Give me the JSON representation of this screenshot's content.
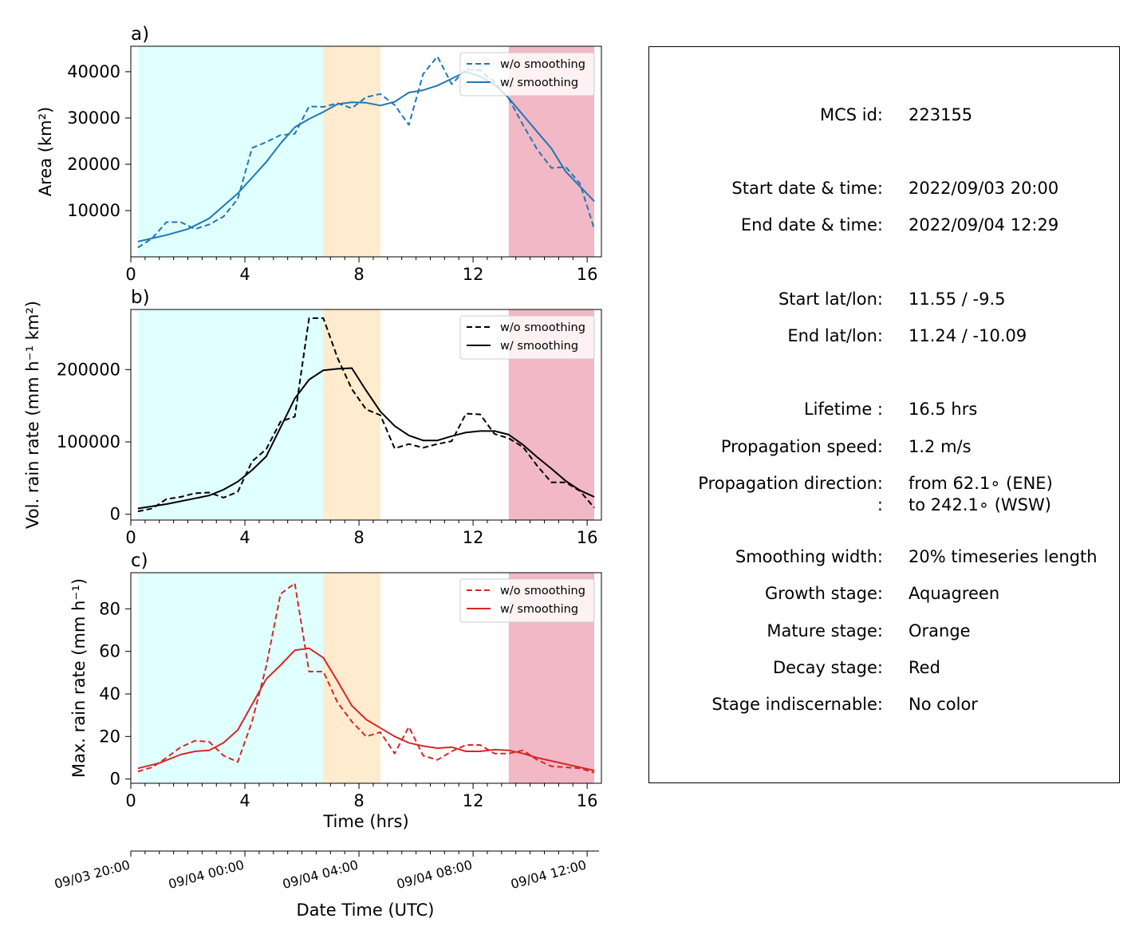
{
  "chart_data": [
    {
      "type": "line",
      "panel_label": "a)",
      "ylabel": "Area  (km²)",
      "xlim": [
        0,
        16.5
      ],
      "ylim": [
        0,
        45500
      ],
      "yticks": [
        10000,
        20000,
        30000,
        40000
      ],
      "xticks": [
        0,
        4,
        8,
        12,
        16
      ],
      "stages": [
        {
          "name": "growth",
          "x0": 0.25,
          "x1": 6.75,
          "color": "#e0ffff"
        },
        {
          "name": "mature",
          "x0": 6.75,
          "x1": 8.75,
          "color": "#ffebcd"
        },
        {
          "name": "decay",
          "x0": 13.25,
          "x1": 16.25,
          "color": "#f2b8c6"
        }
      ],
      "legend": {
        "location": "top-right"
      },
      "series": [
        {
          "name": "w/o smoothing",
          "style": "dashed",
          "color": "#1f77b4",
          "x": [
            0.25,
            0.75,
            1.25,
            1.75,
            2.25,
            2.75,
            3.25,
            3.75,
            4.25,
            4.75,
            5.25,
            5.75,
            6.25,
            6.75,
            7.25,
            7.75,
            8.25,
            8.75,
            9.25,
            9.75,
            10.25,
            10.75,
            11.25,
            11.75,
            12.25,
            12.75,
            13.25,
            13.75,
            14.25,
            14.75,
            15.25,
            15.75,
            16.25
          ],
          "y": [
            2000,
            4000,
            7500,
            7500,
            6000,
            7000,
            8700,
            12500,
            23500,
            24800,
            26300,
            26600,
            32500,
            32400,
            33200,
            32100,
            34500,
            35200,
            32800,
            28500,
            39500,
            43300,
            37300,
            40500,
            40300,
            37800,
            34200,
            28500,
            23200,
            19200,
            19400,
            15800,
            6000
          ]
        },
        {
          "name": "w/ smoothing",
          "style": "solid",
          "color": "#1f77b4",
          "x": [
            0.25,
            1.25,
            2.0,
            2.75,
            3.75,
            4.75,
            5.25,
            5.75,
            6.25,
            6.75,
            7.25,
            7.75,
            8.25,
            8.75,
            9.25,
            9.75,
            10.25,
            10.75,
            11.25,
            11.75,
            12.25,
            12.75,
            13.25,
            14.25,
            14.75,
            15.25,
            16.25
          ],
          "y": [
            3300,
            4700,
            6000,
            8300,
            13700,
            20500,
            24500,
            28000,
            29800,
            31300,
            33000,
            33400,
            33300,
            32700,
            33500,
            35500,
            36000,
            37000,
            38500,
            40000,
            39000,
            37200,
            34300,
            27000,
            23400,
            18400,
            12000
          ]
        }
      ]
    },
    {
      "type": "line",
      "panel_label": "b)",
      "ylabel": "Vol. rain rate (mm h⁻¹ km²)",
      "xlim": [
        0,
        16.5
      ],
      "ylim": [
        -8000,
        283000
      ],
      "yticks": [
        0,
        100000,
        200000
      ],
      "xticks": [
        0,
        4,
        8,
        12,
        16
      ],
      "stages": [
        {
          "name": "growth",
          "x0": 0.25,
          "x1": 6.75,
          "color": "#e0ffff"
        },
        {
          "name": "mature",
          "x0": 6.75,
          "x1": 8.75,
          "color": "#ffebcd"
        },
        {
          "name": "decay",
          "x0": 13.25,
          "x1": 16.25,
          "color": "#f2b8c6"
        }
      ],
      "legend": {
        "location": "top-right"
      },
      "series": [
        {
          "name": "w/o smoothing",
          "style": "dashed",
          "color": "#000000",
          "x": [
            0.25,
            0.75,
            1.25,
            1.75,
            2.25,
            2.75,
            3.25,
            3.75,
            4.25,
            4.75,
            5.25,
            5.75,
            6.25,
            6.75,
            7.25,
            7.75,
            8.25,
            8.75,
            9.25,
            9.75,
            10.25,
            10.75,
            11.25,
            11.75,
            12.25,
            12.75,
            13.25,
            13.75,
            14.25,
            14.75,
            15.25,
            15.75,
            16.25
          ],
          "y": [
            4000,
            8000,
            21000,
            24000,
            29000,
            30000,
            23000,
            31000,
            73000,
            90000,
            128000,
            135000,
            271000,
            271000,
            216000,
            173000,
            145000,
            137000,
            91000,
            97000,
            92000,
            97000,
            101000,
            139000,
            138000,
            111000,
            105000,
            93000,
            67000,
            44000,
            44000,
            32000,
            9000
          ]
        },
        {
          "name": "w/ smoothing",
          "style": "solid",
          "color": "#000000",
          "x": [
            0.25,
            1.25,
            2.25,
            2.75,
            3.25,
            3.75,
            4.25,
            4.75,
            5.25,
            5.75,
            6.25,
            6.75,
            7.25,
            7.75,
            8.25,
            8.75,
            9.25,
            9.75,
            10.25,
            10.75,
            11.25,
            11.75,
            12.25,
            12.75,
            13.25,
            13.75,
            14.25,
            14.75,
            15.25,
            15.75,
            16.25
          ],
          "y": [
            8000,
            14000,
            22000,
            26000,
            34000,
            45000,
            61000,
            80000,
            120000,
            160000,
            186000,
            199000,
            201000,
            202000,
            171000,
            142000,
            122000,
            109000,
            102000,
            102000,
            108000,
            113000,
            115000,
            115000,
            110000,
            96000,
            79000,
            63000,
            46000,
            33000,
            24000
          ]
        }
      ]
    },
    {
      "type": "line",
      "panel_label": "c)",
      "ylabel": "Max. rain rate  (mm h⁻¹)",
      "xlabel": "Time (hrs)",
      "xlim": [
        0,
        16.5
      ],
      "ylim": [
        -2,
        97
      ],
      "yticks": [
        0,
        20,
        40,
        60,
        80
      ],
      "xticks": [
        0,
        4,
        8,
        12,
        16
      ],
      "stages": [
        {
          "name": "growth",
          "x0": 0.25,
          "x1": 6.75,
          "color": "#e0ffff"
        },
        {
          "name": "mature",
          "x0": 6.75,
          "x1": 8.75,
          "color": "#ffebcd"
        },
        {
          "name": "decay",
          "x0": 13.25,
          "x1": 16.25,
          "color": "#f2b8c6"
        }
      ],
      "legend": {
        "location": "top-right"
      },
      "series": [
        {
          "name": "w/o smoothing",
          "style": "dashed",
          "color": "#d62728",
          "x": [
            0.25,
            0.75,
            1.25,
            1.75,
            2.25,
            2.75,
            3.25,
            3.75,
            4.25,
            4.75,
            5.25,
            5.75,
            6.25,
            6.75,
            7.25,
            7.75,
            8.25,
            8.75,
            9.25,
            9.75,
            10.25,
            10.75,
            11.25,
            11.75,
            12.25,
            12.75,
            13.25,
            13.75,
            14.25,
            14.75,
            15.25,
            15.75,
            16.25
          ],
          "y": [
            3.5,
            5.5,
            10,
            15,
            18,
            17.5,
            11,
            8,
            27,
            53,
            87,
            92,
            50.5,
            50.5,
            36,
            27,
            20,
            22,
            12,
            24.5,
            11,
            9,
            13,
            16,
            16,
            12,
            12,
            13.5,
            9,
            6,
            5.5,
            5,
            3
          ]
        },
        {
          "name": "w/ smoothing",
          "style": "solid",
          "color": "#d62728",
          "x": [
            0.25,
            1.0,
            1.75,
            2.25,
            2.75,
            3.25,
            3.75,
            4.25,
            4.75,
            5.25,
            5.75,
            6.25,
            6.75,
            7.25,
            7.75,
            8.25,
            8.75,
            9.25,
            9.75,
            10.25,
            10.75,
            11.25,
            11.75,
            12.25,
            12.75,
            13.25,
            13.75,
            14.25,
            14.75,
            15.25,
            15.75,
            16.25
          ],
          "y": [
            5,
            7.5,
            11.5,
            13,
            13.5,
            17,
            23,
            35,
            47,
            53.5,
            60.5,
            61.5,
            57,
            46,
            34.5,
            28,
            24,
            20,
            17,
            15.5,
            14.5,
            15,
            13,
            13,
            13.8,
            13.5,
            12,
            10,
            8.5,
            7,
            5.5,
            4
          ]
        }
      ]
    }
  ],
  "datetime_axis": {
    "xlabel": "Date Time (UTC)",
    "tick_labels": [
      {
        "hours": 0,
        "label": "09/03 20:00"
      },
      {
        "hours": 4,
        "label": "09/04 00:00"
      },
      {
        "hours": 8,
        "label": "09/04 04:00"
      },
      {
        "hours": 12,
        "label": "09/04 08:00"
      },
      {
        "hours": 16,
        "label": "09/04 12:00"
      }
    ]
  },
  "info": {
    "rows": [
      {
        "label": "MCS id:",
        "value": "223155"
      },
      {
        "label": "Start date & time:",
        "value": "2022/09/03 20:00"
      },
      {
        "label": "End date & time:",
        "value": "2022/09/04 12:29"
      },
      {
        "label": "Start lat/lon:",
        "value": "11.55 / -9.5"
      },
      {
        "label": "End lat/lon:",
        "value": "11.24 / -10.09"
      },
      {
        "label": "Lifetime :",
        "value": "16.5 hrs"
      },
      {
        "label": "Propagation speed:",
        "value": "1.2 m/s"
      },
      {
        "label": "Propagation direction:",
        "value": "from  62.1∘ (ENE)"
      },
      {
        "label": ":",
        "value": "to   242.1∘ (WSW)"
      },
      {
        "label": "Smoothing width:",
        "value": "20% timeseries length"
      },
      {
        "label": "Growth stage:",
        "value": "Aquagreen"
      },
      {
        "label": "Mature stage:",
        "value": "Orange"
      },
      {
        "label": "Decay stage:",
        "value": "Red"
      },
      {
        "label": "Stage indiscernable:",
        "value": "No color"
      }
    ]
  }
}
